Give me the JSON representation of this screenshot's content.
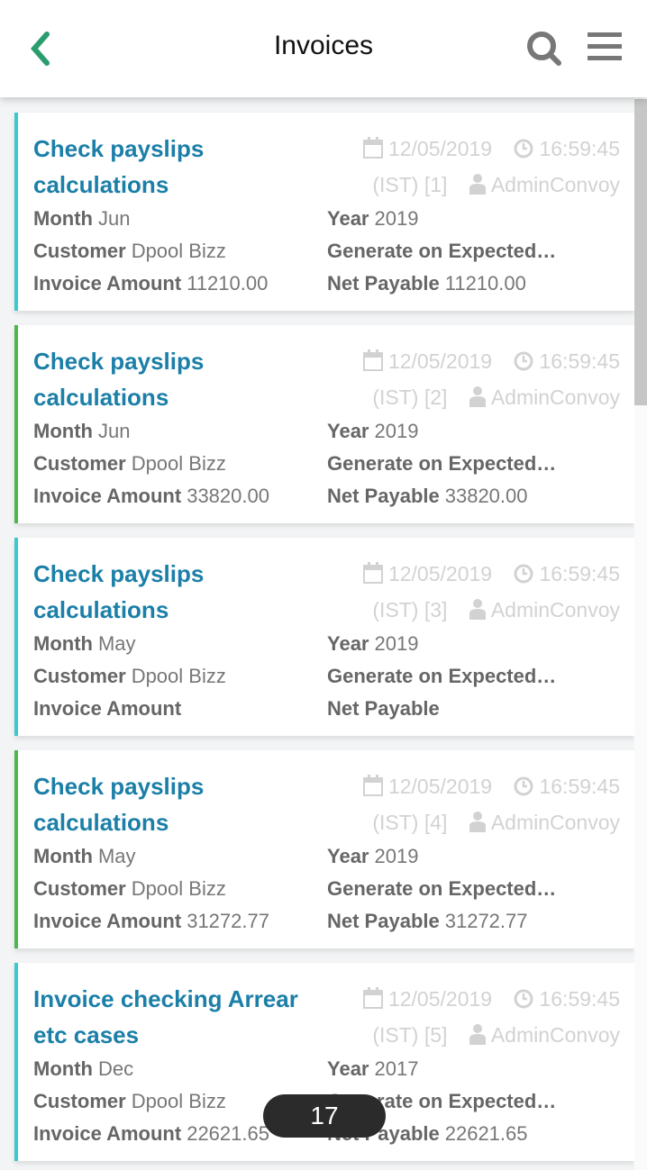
{
  "header": {
    "title": "Invoices",
    "back_icon": "chevron-left-icon",
    "search_icon": "search-icon",
    "menu_icon": "hamburger-menu-icon"
  },
  "colors": {
    "accent": "#2a9d6f",
    "title": "#1b7fa8",
    "border_cyan": "#3cc8d0",
    "border_green": "#4cb84c"
  },
  "labels": {
    "month": "Month",
    "year": "Year",
    "customer": "Customer",
    "generate": "Generate on Expected…",
    "invoice_amount": "Invoice Amount",
    "net_payable": "Net Payable"
  },
  "invoices": [
    {
      "title": "Check payslips calculations",
      "date": "12/05/2019",
      "time": "16:59:45",
      "tz": "(IST) [1]",
      "user": "AdminConvoy",
      "month": "Jun",
      "year": "2019",
      "customer": "Dpool Bizz",
      "invoice_amount": "11210.00",
      "net_payable": "11210.00",
      "status_color": "cyan"
    },
    {
      "title": "Check payslips calculations",
      "date": "12/05/2019",
      "time": "16:59:45",
      "tz": "(IST) [2]",
      "user": "AdminConvoy",
      "month": "Jun",
      "year": "2019",
      "customer": "Dpool Bizz",
      "invoice_amount": "33820.00",
      "net_payable": "33820.00",
      "status_color": "green"
    },
    {
      "title": "Check payslips calculations",
      "date": "12/05/2019",
      "time": "16:59:45",
      "tz": "(IST) [3]",
      "user": "AdminConvoy",
      "month": "May",
      "year": "2019",
      "customer": "Dpool Bizz",
      "invoice_amount": "",
      "net_payable": "",
      "status_color": "cyan"
    },
    {
      "title": "Check payslips calculations",
      "date": "12/05/2019",
      "time": "16:59:45",
      "tz": "(IST) [4]",
      "user": "AdminConvoy",
      "month": "May",
      "year": "2019",
      "customer": "Dpool Bizz",
      "invoice_amount": "31272.77",
      "net_payable": "31272.77",
      "status_color": "green"
    },
    {
      "title": "Invoice checking Arrear etc cases",
      "date": "12/05/2019",
      "time": "16:59:45",
      "tz": "(IST) [5]",
      "user": "AdminConvoy",
      "month": "Dec",
      "year": "2017",
      "customer": "Dpool Bizz",
      "invoice_amount": "22621.65",
      "net_payable": "22621.65",
      "status_color": "cyan"
    }
  ],
  "toast": {
    "count": "17"
  }
}
